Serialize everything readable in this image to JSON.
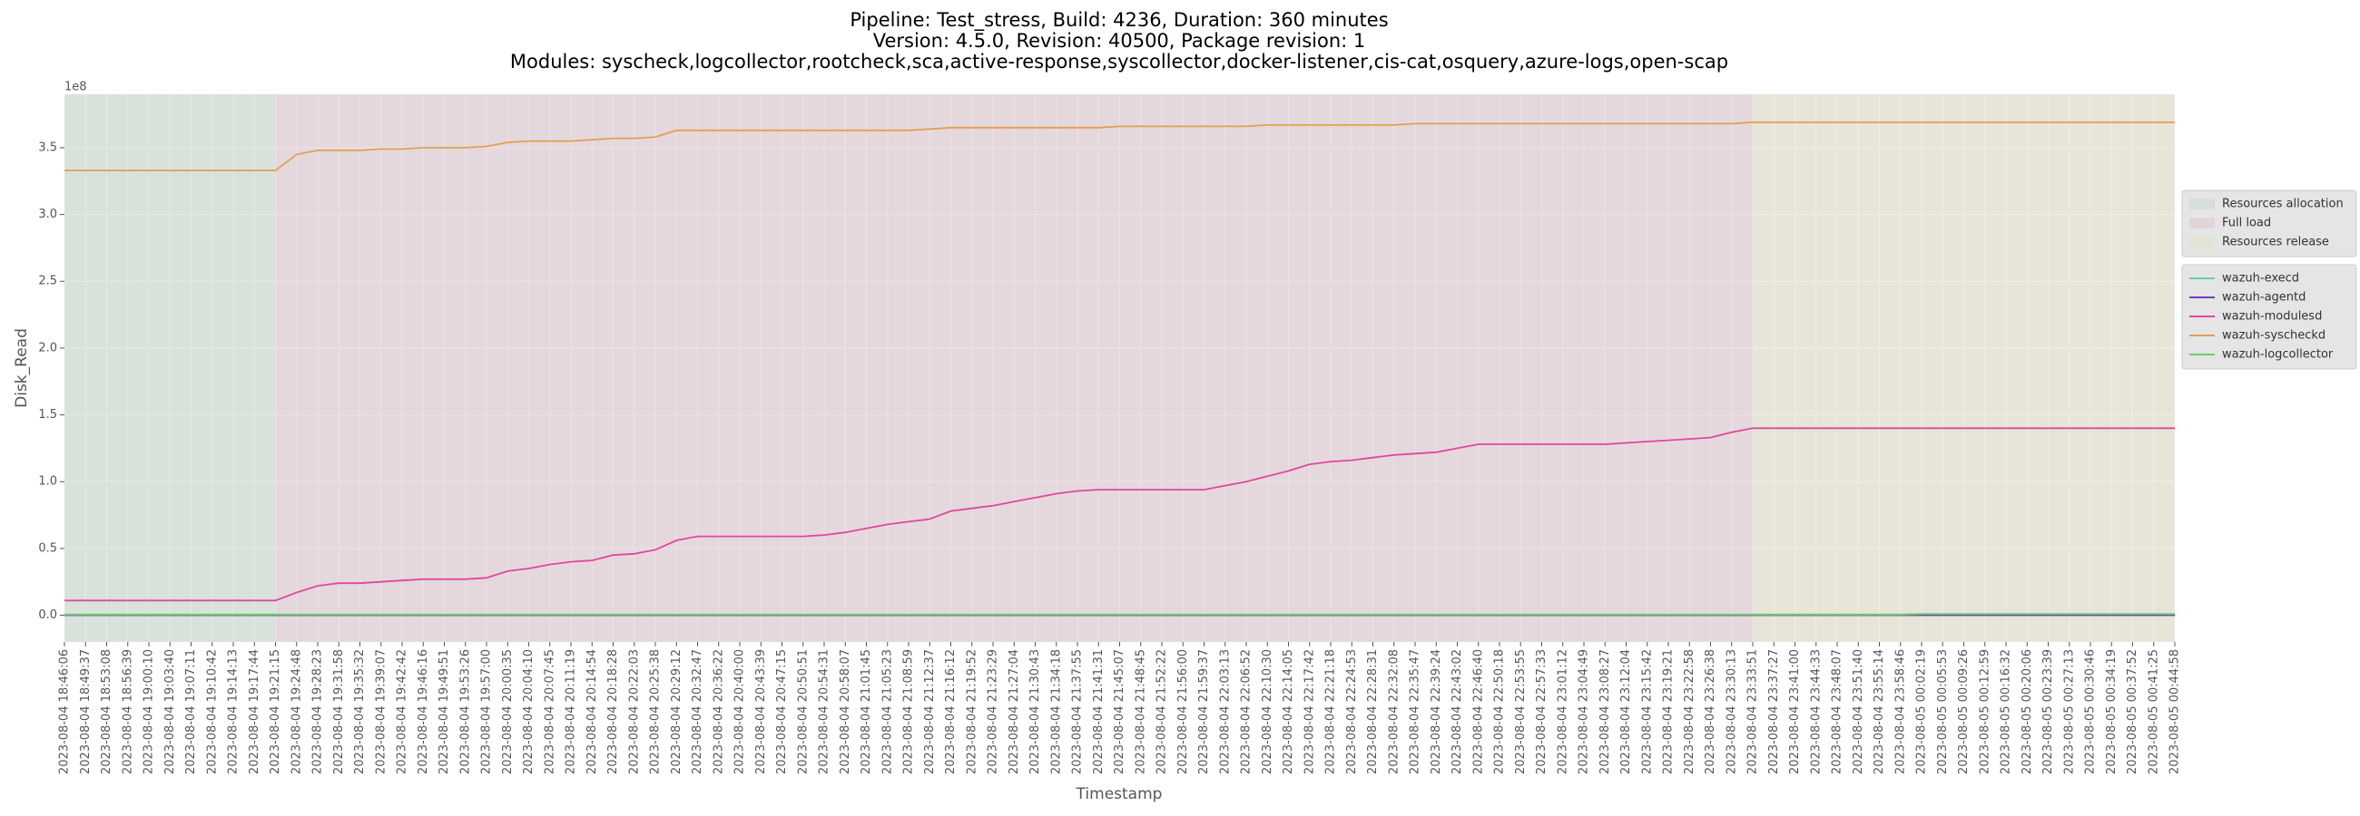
{
  "chart_data": {
    "type": "line",
    "title": [
      "Pipeline: Test_stress, Build: 4236, Duration: 360 minutes",
      "Version: 4.5.0, Revision: 40500, Package revision: 1",
      "Modules: syscheck,logcollector,rootcheck,sca,active-response,syscollector,docker-listener,cis-cat,osquery,azure-logs,open-scap"
    ],
    "x_label": "Timestamp",
    "y_label": "Disk_Read",
    "y_offset_label": "1e8",
    "grid": true,
    "legend": "right",
    "ylim": [
      -20000000,
      390000000
    ],
    "yticks": [
      {
        "value": 0,
        "label": "0.0"
      },
      {
        "value": 50000000,
        "label": "0.5"
      },
      {
        "value": 100000000,
        "label": "1.0"
      },
      {
        "value": 150000000,
        "label": "1.5"
      },
      {
        "value": 200000000,
        "label": "2.0"
      },
      {
        "value": 250000000,
        "label": "2.5"
      },
      {
        "value": 300000000,
        "label": "3.0"
      },
      {
        "value": 350000000,
        "label": "3.5"
      }
    ],
    "categories": [
      "2023-08-04 18:46:06",
      "2023-08-04 18:49:37",
      "2023-08-04 18:53:08",
      "2023-08-04 18:56:39",
      "2023-08-04 19:00:10",
      "2023-08-04 19:03:40",
      "2023-08-04 19:07:11",
      "2023-08-04 19:10:42",
      "2023-08-04 19:14:13",
      "2023-08-04 19:17:44",
      "2023-08-04 19:21:15",
      "2023-08-04 19:24:48",
      "2023-08-04 19:28:23",
      "2023-08-04 19:31:58",
      "2023-08-04 19:35:32",
      "2023-08-04 19:39:07",
      "2023-08-04 19:42:42",
      "2023-08-04 19:46:16",
      "2023-08-04 19:49:51",
      "2023-08-04 19:53:26",
      "2023-08-04 19:57:00",
      "2023-08-04 20:00:35",
      "2023-08-04 20:04:10",
      "2023-08-04 20:07:45",
      "2023-08-04 20:11:19",
      "2023-08-04 20:14:54",
      "2023-08-04 20:18:28",
      "2023-08-04 20:22:03",
      "2023-08-04 20:25:38",
      "2023-08-04 20:29:12",
      "2023-08-04 20:32:47",
      "2023-08-04 20:36:22",
      "2023-08-04 20:40:00",
      "2023-08-04 20:43:39",
      "2023-08-04 20:47:15",
      "2023-08-04 20:50:51",
      "2023-08-04 20:54:31",
      "2023-08-04 20:58:07",
      "2023-08-04 21:01:45",
      "2023-08-04 21:05:23",
      "2023-08-04 21:08:59",
      "2023-08-04 21:12:37",
      "2023-08-04 21:16:12",
      "2023-08-04 21:19:52",
      "2023-08-04 21:23:29",
      "2023-08-04 21:27:04",
      "2023-08-04 21:30:43",
      "2023-08-04 21:34:18",
      "2023-08-04 21:37:55",
      "2023-08-04 21:41:31",
      "2023-08-04 21:45:07",
      "2023-08-04 21:48:45",
      "2023-08-04 21:52:22",
      "2023-08-04 21:56:00",
      "2023-08-04 21:59:37",
      "2023-08-04 22:03:13",
      "2023-08-04 22:06:52",
      "2023-08-04 22:10:30",
      "2023-08-04 22:14:05",
      "2023-08-04 22:17:42",
      "2023-08-04 22:21:18",
      "2023-08-04 22:24:53",
      "2023-08-04 22:28:31",
      "2023-08-04 22:32:08",
      "2023-08-04 22:35:47",
      "2023-08-04 22:39:24",
      "2023-08-04 22:43:02",
      "2023-08-04 22:46:40",
      "2023-08-04 22:50:18",
      "2023-08-04 22:53:55",
      "2023-08-04 22:57:33",
      "2023-08-04 23:01:12",
      "2023-08-04 23:04:49",
      "2023-08-04 23:08:27",
      "2023-08-04 23:12:04",
      "2023-08-04 23:15:42",
      "2023-08-04 23:19:21",
      "2023-08-04 23:22:58",
      "2023-08-04 23:26:38",
      "2023-08-04 23:30:13",
      "2023-08-04 23:33:51",
      "2023-08-04 23:37:27",
      "2023-08-04 23:41:00",
      "2023-08-04 23:44:33",
      "2023-08-04 23:48:07",
      "2023-08-04 23:51:40",
      "2023-08-04 23:55:14",
      "2023-08-04 23:58:46",
      "2023-08-05 00:02:19",
      "2023-08-05 00:05:53",
      "2023-08-05 00:09:26",
      "2023-08-05 00:12:59",
      "2023-08-05 00:16:32",
      "2023-08-05 00:20:06",
      "2023-08-05 00:23:39",
      "2023-08-05 00:27:13",
      "2023-08-05 00:30:46",
      "2023-08-05 00:34:19",
      "2023-08-05 00:37:52",
      "2023-08-05 00:41:25",
      "2023-08-05 00:44:58"
    ],
    "regions": [
      {
        "name": "Resources allocation",
        "color": "#c9dbce",
        "start": "2023-08-04 18:46:06",
        "end": "2023-08-04 19:21:15"
      },
      {
        "name": "Full load",
        "color": "#e0c9cf",
        "start": "2023-08-04 19:21:15",
        "end": "2023-08-04 23:33:51"
      },
      {
        "name": "Resources release",
        "color": "#e1e0c6",
        "start": "2023-08-04 23:33:51",
        "end": "2023-08-05 00:44:58"
      }
    ],
    "series": [
      {
        "name": "wazuh-execd",
        "color": "#5ed1b4",
        "values": [
          0,
          0,
          0,
          0,
          0,
          0,
          0,
          0,
          0,
          0,
          0,
          0,
          0,
          0,
          0,
          0,
          0,
          0,
          0,
          0,
          0,
          0,
          0,
          0,
          0,
          0,
          0,
          0,
          0,
          0,
          0,
          0,
          0,
          0,
          0,
          0,
          0,
          0,
          0,
          0,
          0,
          0,
          0,
          0,
          0,
          0,
          0,
          0,
          0,
          0,
          0,
          0,
          0,
          0,
          0,
          0,
          0,
          0,
          0,
          0,
          0,
          0,
          0,
          0,
          0,
          0,
          0,
          0,
          0,
          0,
          0,
          0,
          0,
          0,
          0,
          0,
          0,
          0,
          0,
          0,
          0,
          0,
          0,
          0,
          0,
          0,
          0,
          0,
          0,
          0,
          0,
          0,
          0,
          0,
          0,
          0,
          0,
          0,
          0,
          0,
          0
        ]
      },
      {
        "name": "wazuh-agentd",
        "color": "#6a3fbf",
        "values": [
          0,
          0,
          0,
          0,
          0,
          0,
          0,
          0,
          0,
          0,
          0,
          0,
          0,
          0,
          0,
          0,
          0,
          0,
          0,
          0,
          0,
          0,
          0,
          0,
          0,
          0,
          0,
          0,
          0,
          0,
          0,
          0,
          0,
          0,
          0,
          0,
          0,
          0,
          0,
          0,
          0,
          0,
          0,
          0,
          0,
          0,
          0,
          0,
          0,
          0,
          0,
          0,
          0,
          0,
          0,
          0,
          0,
          0,
          0,
          0,
          0,
          0,
          0,
          0,
          0,
          0,
          0,
          0,
          0,
          0,
          0,
          0,
          0,
          0,
          0,
          0,
          0,
          0,
          0,
          0,
          0,
          0,
          0,
          0,
          0,
          0,
          0,
          0,
          0,
          0,
          0,
          0,
          0,
          0,
          0,
          0,
          0,
          0,
          0,
          0,
          0
        ]
      },
      {
        "name": "wazuh-modulesd",
        "color": "#e0489d",
        "values": [
          11000000,
          11000000,
          11000000,
          11000000,
          11000000,
          11000000,
          11000000,
          11000000,
          11000000,
          11000000,
          11000000,
          17000000,
          22000000,
          24000000,
          24000000,
          25000000,
          26000000,
          27000000,
          27000000,
          27000000,
          28000000,
          33000000,
          35000000,
          38000000,
          40000000,
          41000000,
          45000000,
          46000000,
          49000000,
          56000000,
          59000000,
          59000000,
          59000000,
          59000000,
          59000000,
          59000000,
          60000000,
          62000000,
          65000000,
          68000000,
          70000000,
          72000000,
          78000000,
          80000000,
          82000000,
          85000000,
          88000000,
          91000000,
          93000000,
          94000000,
          94000000,
          94000000,
          94000000,
          94000000,
          94000000,
          97000000,
          100000000,
          104000000,
          108000000,
          113000000,
          115000000,
          116000000,
          118000000,
          120000000,
          121000000,
          122000000,
          125000000,
          128000000,
          128000000,
          128000000,
          128000000,
          128000000,
          128000000,
          128000000,
          129000000,
          130000000,
          131000000,
          132000000,
          133000000,
          137000000,
          140000000,
          140000000,
          140000000,
          140000000,
          140000000,
          140000000,
          140000000,
          140000000,
          140000000,
          140000000,
          140000000,
          140000000,
          140000000,
          140000000,
          140000000,
          140000000,
          140000000,
          140000000,
          140000000,
          140000000,
          140000000
        ]
      },
      {
        "name": "wazuh-syscheckd",
        "color": "#e0a050",
        "values": [
          333000000,
          333000000,
          333000000,
          333000000,
          333000000,
          333000000,
          333000000,
          333000000,
          333000000,
          333000000,
          333000000,
          345000000,
          348000000,
          348000000,
          348000000,
          349000000,
          349000000,
          350000000,
          350000000,
          350000000,
          351000000,
          354000000,
          355000000,
          355000000,
          355000000,
          356000000,
          357000000,
          357000000,
          358000000,
          363000000,
          363000000,
          363000000,
          363000000,
          363000000,
          363000000,
          363000000,
          363000000,
          363000000,
          363000000,
          363000000,
          363000000,
          364000000,
          365000000,
          365000000,
          365000000,
          365000000,
          365000000,
          365000000,
          365000000,
          365000000,
          366000000,
          366000000,
          366000000,
          366000000,
          366000000,
          366000000,
          366000000,
          367000000,
          367000000,
          367000000,
          367000000,
          367000000,
          367000000,
          367000000,
          368000000,
          368000000,
          368000000,
          368000000,
          368000000,
          368000000,
          368000000,
          368000000,
          368000000,
          368000000,
          368000000,
          368000000,
          368000000,
          368000000,
          368000000,
          368000000,
          369000000,
          369000000,
          369000000,
          369000000,
          369000000,
          369000000,
          369000000,
          369000000,
          369000000,
          369000000,
          369000000,
          369000000,
          369000000,
          369000000,
          369000000,
          369000000,
          369000000,
          369000000,
          369000000,
          369000000,
          369000000
        ]
      },
      {
        "name": "wazuh-logcollector",
        "color": "#6ccf5f",
        "values": [
          500000,
          500000,
          500000,
          500000,
          500000,
          500000,
          500000,
          500000,
          500000,
          500000,
          500000,
          500000,
          500000,
          500000,
          500000,
          500000,
          500000,
          500000,
          500000,
          500000,
          500000,
          500000,
          500000,
          500000,
          500000,
          500000,
          500000,
          500000,
          500000,
          500000,
          500000,
          500000,
          500000,
          500000,
          500000,
          500000,
          500000,
          500000,
          500000,
          500000,
          500000,
          500000,
          500000,
          500000,
          500000,
          500000,
          500000,
          500000,
          500000,
          500000,
          500000,
          500000,
          500000,
          500000,
          500000,
          500000,
          500000,
          500000,
          500000,
          500000,
          500000,
          500000,
          500000,
          500000,
          500000,
          500000,
          500000,
          500000,
          500000,
          500000,
          500000,
          500000,
          500000,
          500000,
          500000,
          500000,
          500000,
          500000,
          500000,
          500000,
          500000,
          500000,
          500000,
          500000,
          500000,
          500000,
          500000,
          500000,
          1000000,
          1000000,
          1000000,
          1000000,
          1000000,
          1000000,
          1000000,
          1000000,
          1000000,
          1000000,
          1000000,
          1000000,
          1000000
        ]
      }
    ]
  }
}
